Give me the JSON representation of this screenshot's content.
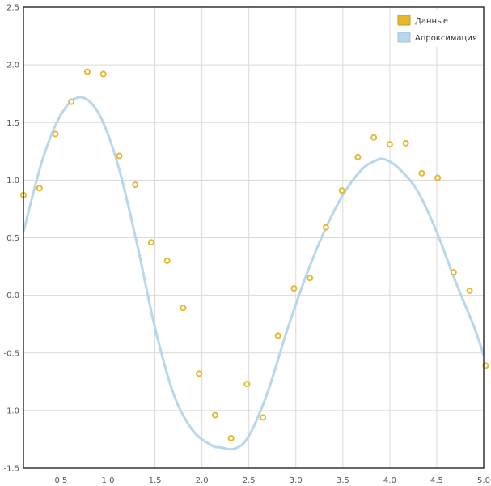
{
  "chart_data": {
    "type": "scatter",
    "title": "",
    "xlabel": "",
    "ylabel": "",
    "xlim": [
      0.1,
      5.0
    ],
    "ylim": [
      -1.5,
      2.5
    ],
    "xticks": [
      0.5,
      1.0,
      1.5,
      2.0,
      2.5,
      3.0,
      3.5,
      4.0,
      4.5,
      5.0
    ],
    "xtick_labels": [
      "0.5",
      "1.0",
      "1.5",
      "2.0",
      "2.5",
      "3.0",
      "3.5",
      "4.0",
      "4.5",
      "5.0"
    ],
    "yticks": [
      -1.5,
      -1.0,
      -0.5,
      0.0,
      0.5,
      1.0,
      1.5,
      2.0,
      2.5
    ],
    "ytick_labels": [
      "-1.5",
      "-1.0",
      "-0.5",
      "0.0",
      "0.5",
      "1.0",
      "1.5",
      "2.0",
      "2.5"
    ],
    "grid": true,
    "legend_position": "top-right",
    "series": [
      {
        "name": "Данные",
        "kind": "scatter",
        "color": "#e6b82e",
        "x": [
          0.1,
          0.27,
          0.44,
          0.61,
          0.78,
          0.95,
          1.12,
          1.29,
          1.46,
          1.63,
          1.8,
          1.97,
          2.14,
          2.31,
          2.48,
          2.65,
          2.81,
          2.98,
          3.15,
          3.32,
          3.49,
          3.66,
          3.83,
          4.0,
          4.17,
          4.34,
          4.51,
          4.68,
          4.85,
          5.02
        ],
        "y": [
          0.87,
          0.93,
          1.4,
          1.68,
          1.94,
          1.92,
          1.21,
          0.96,
          0.46,
          0.3,
          -0.11,
          -0.68,
          -1.04,
          -1.24,
          -0.77,
          -1.06,
          -0.35,
          0.06,
          0.15,
          0.59,
          0.91,
          1.2,
          1.37,
          1.31,
          1.32,
          1.06,
          1.02,
          0.2,
          0.04,
          -0.61
        ]
      },
      {
        "name": "Апроксимация",
        "kind": "line",
        "color": "#b8d6ec",
        "x": [
          0.1,
          0.3,
          0.5,
          0.7,
          0.9,
          1.1,
          1.3,
          1.5,
          1.7,
          1.9,
          2.1,
          2.2,
          2.35,
          2.5,
          2.7,
          2.9,
          3.1,
          3.3,
          3.5,
          3.7,
          3.85,
          3.95,
          4.1,
          4.3,
          4.5,
          4.7,
          4.9,
          5.0
        ],
        "y": [
          0.55,
          1.17,
          1.57,
          1.72,
          1.58,
          1.15,
          0.48,
          -0.28,
          -0.86,
          -1.17,
          -1.3,
          -1.32,
          -1.33,
          -1.22,
          -0.84,
          -0.32,
          0.15,
          0.55,
          0.87,
          1.09,
          1.17,
          1.18,
          1.1,
          0.9,
          0.55,
          0.12,
          -0.28,
          -0.52
        ]
      }
    ]
  }
}
